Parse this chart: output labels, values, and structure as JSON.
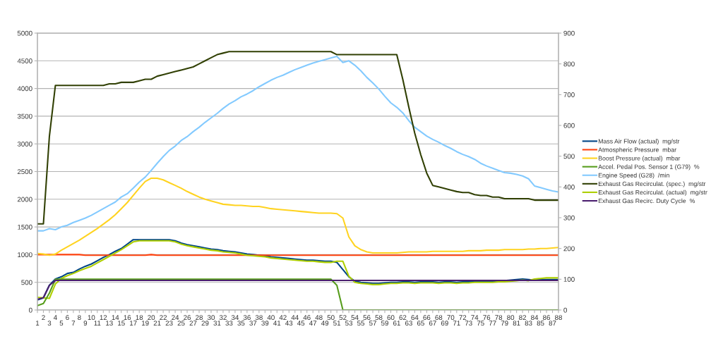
{
  "chart_data": {
    "type": "line",
    "categories": [
      "1",
      "2",
      "3",
      "4",
      "5",
      "6",
      "7",
      "8",
      "9",
      "10",
      "11",
      "12",
      "13",
      "14",
      "15",
      "16",
      "17",
      "18",
      "19",
      "20",
      "21",
      "22",
      "23",
      "24",
      "25",
      "26",
      "27",
      "28",
      "29",
      "30",
      "31",
      "32",
      "33",
      "34",
      "35",
      "36",
      "37",
      "38",
      "39",
      "40",
      "41",
      "42",
      "43",
      "44",
      "45",
      "46",
      "47",
      "48",
      "49",
      "50",
      "51",
      "52",
      "53",
      "54",
      "55",
      "56",
      "57",
      "58",
      "59",
      "60",
      "61",
      "62",
      "63",
      "64",
      "65",
      "66",
      "67",
      "68",
      "69",
      "70",
      "71",
      "72",
      "73",
      "74",
      "75",
      "76",
      "77",
      "78",
      "79",
      "80",
      "81",
      "82",
      "83",
      "84",
      "85",
      "86",
      "87",
      "88"
    ],
    "ylim": [
      0,
      5000
    ],
    "yticks": [
      0,
      500,
      1000,
      1500,
      2000,
      2500,
      3000,
      3500,
      4000,
      4500,
      5000
    ],
    "y2lim": [
      0,
      900
    ],
    "y2ticks": [
      0,
      100,
      200,
      300,
      400,
      500,
      600,
      700,
      800,
      900
    ],
    "grid": "y",
    "legend": "right",
    "series": [
      {
        "name": "Mass Air Flow (actual)  mg/str",
        "color": "#004586",
        "values": [
          180,
          220,
          450,
          560,
          600,
          660,
          680,
          740,
          790,
          830,
          890,
          950,
          1000,
          1060,
          1110,
          1190,
          1270,
          1270,
          1270,
          1270,
          1270,
          1270,
          1270,
          1250,
          1210,
          1180,
          1160,
          1140,
          1120,
          1100,
          1090,
          1070,
          1060,
          1050,
          1030,
          1010,
          1000,
          990,
          980,
          960,
          950,
          940,
          930,
          920,
          910,
          900,
          900,
          890,
          880,
          880,
          860,
          730,
          600,
          520,
          500,
          490,
          480,
          480,
          490,
          500,
          500,
          510,
          510,
          500,
          510,
          510,
          510,
          500,
          510,
          510,
          500,
          510,
          510,
          520,
          520,
          520,
          520,
          530,
          530,
          540,
          550,
          560,
          550,
          540,
          550,
          550,
          550,
          550
        ]
      },
      {
        "name": "Atmospheric Pressure  mbar",
        "color": "#ff420e",
        "values": [
          1000,
          1000,
          1000,
          1000,
          1000,
          1000,
          1000,
          1000,
          990,
          990,
          990,
          990,
          990,
          990,
          990,
          990,
          990,
          990,
          990,
          1000,
          990,
          990,
          990,
          990,
          990,
          990,
          990,
          990,
          990,
          990,
          990,
          990,
          990,
          990,
          990,
          990,
          990,
          990,
          990,
          990,
          990,
          990,
          990,
          990,
          990,
          990,
          990,
          990,
          990,
          990,
          990,
          990,
          990,
          990,
          990,
          990,
          990,
          990,
          990,
          990,
          990,
          990,
          990,
          990,
          990,
          990,
          990,
          990,
          990,
          990,
          990,
          990,
          990,
          990,
          990,
          990,
          990,
          990,
          990,
          990,
          990,
          990,
          990,
          990,
          990,
          990,
          990,
          990
        ]
      },
      {
        "name": "Boost Pressure (actual)  mbar",
        "color": "#ffd320",
        "values": [
          1020,
          1010,
          990,
          1010,
          1080,
          1140,
          1200,
          1260,
          1330,
          1400,
          1470,
          1550,
          1630,
          1720,
          1830,
          1940,
          2070,
          2200,
          2320,
          2380,
          2380,
          2350,
          2300,
          2250,
          2200,
          2140,
          2090,
          2040,
          2000,
          1970,
          1940,
          1910,
          1900,
          1890,
          1890,
          1880,
          1870,
          1870,
          1850,
          1830,
          1820,
          1810,
          1800,
          1790,
          1780,
          1770,
          1760,
          1750,
          1750,
          1750,
          1740,
          1660,
          1320,
          1160,
          1090,
          1050,
          1030,
          1030,
          1030,
          1030,
          1030,
          1040,
          1050,
          1050,
          1050,
          1050,
          1060,
          1060,
          1060,
          1060,
          1060,
          1060,
          1070,
          1070,
          1070,
          1080,
          1080,
          1080,
          1090,
          1090,
          1090,
          1090,
          1100,
          1100,
          1110,
          1110,
          1120,
          1130
        ]
      },
      {
        "name": "Accel. Pedal Pos. Sensor 1 (G79)  %",
        "color": "#579d1c",
        "axis": "y2",
        "values": [
          14,
          21,
          55,
          100,
          100,
          100,
          100,
          100,
          100,
          100,
          100,
          100,
          100,
          100,
          100,
          100,
          100,
          100,
          100,
          100,
          100,
          100,
          100,
          100,
          100,
          100,
          100,
          100,
          100,
          100,
          100,
          100,
          100,
          100,
          100,
          100,
          100,
          100,
          100,
          100,
          100,
          100,
          100,
          100,
          100,
          100,
          100,
          100,
          100,
          100,
          80,
          0,
          0,
          0,
          0,
          0,
          0,
          0,
          0,
          0,
          0,
          0,
          0,
          0,
          0,
          0,
          0,
          0,
          0,
          0,
          0,
          0,
          0,
          0,
          0,
          0,
          0,
          0,
          0,
          0,
          0,
          0,
          0,
          0,
          0,
          0,
          0,
          0
        ]
      },
      {
        "name": "Engine Speed (G28)  /min",
        "color": "#83caff",
        "values": [
          1430,
          1430,
          1470,
          1450,
          1500,
          1530,
          1580,
          1620,
          1660,
          1710,
          1770,
          1830,
          1890,
          1950,
          2040,
          2100,
          2200,
          2310,
          2400,
          2520,
          2650,
          2770,
          2880,
          2960,
          3060,
          3130,
          3220,
          3300,
          3390,
          3470,
          3550,
          3640,
          3720,
          3780,
          3850,
          3900,
          3960,
          4030,
          4090,
          4150,
          4200,
          4240,
          4290,
          4340,
          4380,
          4420,
          4460,
          4490,
          4520,
          4550,
          4580,
          4470,
          4500,
          4420,
          4320,
          4200,
          4100,
          3990,
          3860,
          3740,
          3660,
          3560,
          3420,
          3300,
          3220,
          3140,
          3080,
          3030,
          2970,
          2920,
          2860,
          2810,
          2770,
          2720,
          2650,
          2600,
          2560,
          2520,
          2480,
          2470,
          2450,
          2420,
          2370,
          2240,
          2210,
          2180,
          2150,
          2130
        ]
      },
      {
        "name": "Exhaust Gas Recirculat. (spec.)  mg/str",
        "color": "#314004",
        "axis": "y2",
        "values": [
          280,
          280,
          565,
          730,
          730,
          730,
          730,
          730,
          730,
          730,
          730,
          730,
          735,
          735,
          740,
          740,
          740,
          745,
          750,
          750,
          760,
          765,
          770,
          775,
          780,
          785,
          790,
          800,
          810,
          820,
          830,
          835,
          840,
          840,
          840,
          840,
          840,
          840,
          840,
          840,
          840,
          840,
          840,
          840,
          840,
          840,
          840,
          840,
          840,
          840,
          830,
          830,
          830,
          830,
          830,
          830,
          830,
          830,
          830,
          830,
          830,
          750,
          660,
          575,
          505,
          445,
          405,
          400,
          395,
          390,
          385,
          382,
          382,
          375,
          372,
          372,
          367,
          367,
          362,
          362,
          362,
          362,
          362,
          357,
          357,
          357,
          357,
          357
        ]
      },
      {
        "name": "Exhaust Gas Recirculat. (actual)  mg/str",
        "color": "#aecf00",
        "values": [
          230,
          220,
          210,
          470,
          570,
          620,
          660,
          710,
          750,
          790,
          850,
          910,
          970,
          1030,
          1090,
          1160,
          1230,
          1250,
          1250,
          1250,
          1250,
          1250,
          1250,
          1230,
          1190,
          1160,
          1140,
          1120,
          1100,
          1080,
          1070,
          1050,
          1040,
          1030,
          1010,
          990,
          980,
          970,
          960,
          940,
          930,
          920,
          910,
          900,
          890,
          880,
          880,
          870,
          860,
          860,
          880,
          880,
          610,
          500,
          480,
          470,
          460,
          460,
          470,
          480,
          480,
          490,
          490,
          480,
          490,
          490,
          490,
          480,
          490,
          490,
          480,
          490,
          490,
          500,
          500,
          500,
          500,
          510,
          510,
          520,
          530,
          540,
          530,
          560,
          570,
          580,
          580,
          580
        ]
      },
      {
        "name": "Exhaust Gas Recirc. Duty Cycle  %",
        "color": "#4b1f6f",
        "axis": "y2",
        "values": [
          35,
          40,
          80,
          96,
          96,
          96,
          96,
          96,
          96,
          96,
          96,
          96,
          96,
          96,
          96,
          96,
          96,
          96,
          96,
          96,
          96,
          96,
          96,
          96,
          96,
          96,
          96,
          96,
          96,
          96,
          96,
          96,
          96,
          96,
          96,
          96,
          96,
          96,
          96,
          96,
          96,
          96,
          96,
          96,
          96,
          96,
          96,
          96,
          96,
          96,
          96,
          96,
          96,
          96,
          96,
          96,
          96,
          96,
          96,
          96,
          96,
          96,
          96,
          96,
          96,
          96,
          96,
          96,
          96,
          96,
          96,
          96,
          96,
          96,
          96,
          96,
          96,
          96,
          96,
          96,
          96,
          96,
          96,
          96,
          96,
          96,
          96,
          96
        ]
      }
    ]
  }
}
